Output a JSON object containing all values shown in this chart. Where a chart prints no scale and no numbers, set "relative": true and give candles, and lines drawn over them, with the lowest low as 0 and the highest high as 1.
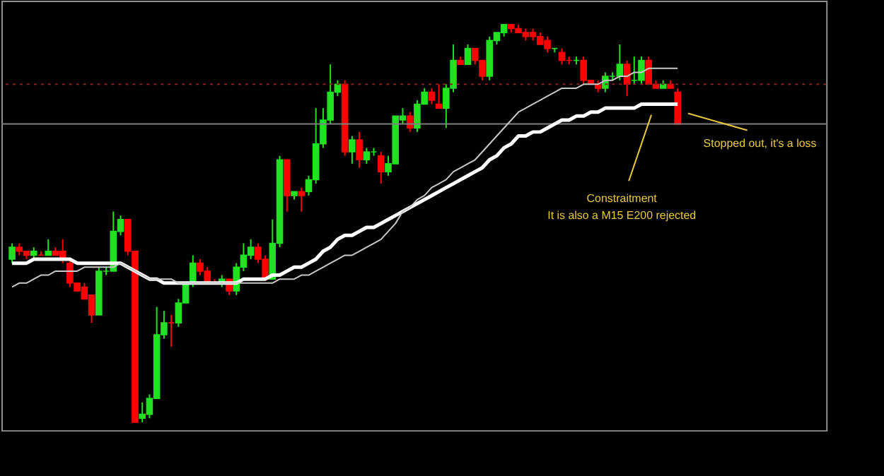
{
  "chart_data": {
    "type": "candlestick",
    "relative": true,
    "tick_labels": false,
    "categories": [
      null,
      null,
      null,
      null,
      null,
      null,
      null,
      null,
      null,
      null,
      null,
      null,
      null,
      null,
      null,
      null,
      null,
      null,
      null,
      null,
      null,
      null,
      null,
      null,
      null,
      null,
      null,
      null,
      null,
      null,
      null,
      null,
      null,
      null,
      null,
      null,
      null,
      null,
      null,
      null,
      null,
      null,
      null,
      null,
      null,
      null,
      null,
      null,
      null,
      null,
      null,
      null,
      null,
      null,
      null,
      null,
      null,
      null,
      null,
      null,
      null,
      null,
      null,
      null,
      null,
      null,
      null,
      null,
      null,
      null,
      null,
      null,
      null,
      null,
      null,
      null,
      null,
      null,
      null,
      null,
      null,
      null,
      null,
      null,
      null,
      null,
      null,
      null,
      null,
      null,
      null,
      null,
      null
    ],
    "ohlc": [
      [
        0.41,
        0.45,
        0.4,
        0.44
      ],
      [
        0.44,
        0.45,
        0.42,
        0.43
      ],
      [
        0.43,
        0.43,
        0.41,
        0.42
      ],
      [
        0.42,
        0.44,
        0.41,
        0.43
      ],
      [
        0.42,
        0.43,
        0.42,
        0.42
      ],
      [
        0.42,
        0.46,
        0.42,
        0.43
      ],
      [
        0.43,
        0.44,
        0.42,
        0.42
      ],
      [
        0.43,
        0.46,
        0.4,
        0.41
      ],
      [
        0.4,
        0.41,
        0.34,
        0.35
      ],
      [
        0.35,
        0.35,
        0.33,
        0.33
      ],
      [
        0.34,
        0.35,
        0.31,
        0.31
      ],
      [
        0.32,
        0.32,
        0.25,
        0.27
      ],
      [
        0.27,
        0.39,
        0.27,
        0.38
      ],
      [
        0.38,
        0.39,
        0.37,
        0.38
      ],
      [
        0.38,
        0.53,
        0.38,
        0.48
      ],
      [
        0.48,
        0.52,
        0.47,
        0.51
      ],
      [
        0.51,
        0.51,
        0.42,
        0.43
      ],
      [
        0.43,
        0.43,
        0.0,
        0.0
      ],
      [
        0.01,
        0.05,
        0.0,
        0.02
      ],
      [
        0.02,
        0.07,
        0.01,
        0.06
      ],
      [
        0.06,
        0.29,
        0.06,
        0.22
      ],
      [
        0.22,
        0.28,
        0.21,
        0.25
      ],
      [
        0.25,
        0.27,
        0.19,
        0.25
      ],
      [
        0.25,
        0.31,
        0.24,
        0.3
      ],
      [
        0.3,
        0.35,
        0.3,
        0.35
      ],
      [
        0.35,
        0.42,
        0.34,
        0.4
      ],
      [
        0.4,
        0.41,
        0.37,
        0.38
      ],
      [
        0.38,
        0.39,
        0.35,
        0.35
      ],
      [
        0.35,
        0.36,
        0.35,
        0.35
      ],
      [
        0.35,
        0.37,
        0.34,
        0.36
      ],
      [
        0.36,
        0.36,
        0.32,
        0.33
      ],
      [
        0.33,
        0.4,
        0.32,
        0.39
      ],
      [
        0.39,
        0.45,
        0.38,
        0.42
      ],
      [
        0.42,
        0.46,
        0.41,
        0.44
      ],
      [
        0.44,
        0.45,
        0.4,
        0.41
      ],
      [
        0.41,
        0.42,
        0.36,
        0.36
      ],
      [
        0.36,
        0.51,
        0.36,
        0.45
      ],
      [
        0.45,
        0.67,
        0.44,
        0.66
      ],
      [
        0.66,
        0.66,
        0.53,
        0.57
      ],
      [
        0.57,
        0.58,
        0.56,
        0.58
      ],
      [
        0.58,
        0.59,
        0.53,
        0.57
      ],
      [
        0.58,
        0.62,
        0.57,
        0.61
      ],
      [
        0.61,
        0.79,
        0.6,
        0.7
      ],
      [
        0.7,
        0.79,
        0.69,
        0.76
      ],
      [
        0.76,
        0.9,
        0.75,
        0.83
      ],
      [
        0.83,
        0.86,
        0.82,
        0.85
      ],
      [
        0.85,
        0.86,
        0.67,
        0.68
      ],
      [
        0.68,
        0.72,
        0.65,
        0.71
      ],
      [
        0.71,
        0.73,
        0.64,
        0.66
      ],
      [
        0.66,
        0.69,
        0.65,
        0.68
      ],
      [
        0.68,
        0.69,
        0.67,
        0.68
      ],
      [
        0.67,
        0.68,
        0.6,
        0.63
      ],
      [
        0.63,
        0.67,
        0.62,
        0.65
      ],
      [
        0.65,
        0.77,
        0.65,
        0.77
      ],
      [
        0.76,
        0.79,
        0.75,
        0.77
      ],
      [
        0.77,
        0.78,
        0.73,
        0.74
      ],
      [
        0.74,
        0.81,
        0.73,
        0.8
      ],
      [
        0.8,
        0.84,
        0.8,
        0.83
      ],
      [
        0.83,
        0.84,
        0.8,
        0.81
      ],
      [
        0.8,
        0.85,
        0.79,
        0.79
      ],
      [
        0.79,
        0.85,
        0.74,
        0.84
      ],
      [
        0.84,
        0.95,
        0.83,
        0.91
      ],
      [
        0.91,
        0.92,
        0.9,
        0.9
      ],
      [
        0.9,
        0.95,
        0.9,
        0.94
      ],
      [
        0.94,
        0.94,
        0.9,
        0.91
      ],
      [
        0.91,
        0.91,
        0.86,
        0.87
      ],
      [
        0.87,
        0.97,
        0.86,
        0.96
      ],
      [
        0.96,
        0.98,
        0.95,
        0.98
      ],
      [
        0.98,
        1.0,
        0.97,
        1.0
      ],
      [
        1.0,
        1.0,
        0.98,
        0.99
      ],
      [
        0.99,
        1.0,
        0.98,
        0.98
      ],
      [
        0.98,
        0.99,
        0.96,
        0.97
      ],
      [
        0.98,
        0.99,
        0.96,
        0.97
      ],
      [
        0.97,
        0.98,
        0.95,
        0.95
      ],
      [
        0.96,
        0.97,
        0.93,
        0.94
      ],
      [
        0.94,
        0.94,
        0.93,
        0.94
      ],
      [
        0.93,
        0.94,
        0.9,
        0.91
      ],
      [
        0.91,
        0.92,
        0.9,
        0.91
      ],
      [
        0.91,
        0.92,
        0.9,
        0.91
      ],
      [
        0.91,
        0.92,
        0.85,
        0.86
      ],
      [
        0.86,
        0.86,
        0.85,
        0.85
      ],
      [
        0.85,
        0.86,
        0.83,
        0.84
      ],
      [
        0.84,
        0.88,
        0.83,
        0.87
      ],
      [
        0.87,
        0.88,
        0.86,
        0.87
      ],
      [
        0.87,
        0.95,
        0.86,
        0.9
      ],
      [
        0.9,
        0.91,
        0.82,
        0.85
      ],
      [
        0.86,
        0.92,
        0.85,
        0.86
      ],
      [
        0.86,
        0.92,
        0.85,
        0.91
      ],
      [
        0.91,
        0.92,
        0.85,
        0.85
      ],
      [
        0.85,
        0.86,
        0.84,
        0.84
      ],
      [
        0.84,
        0.86,
        0.84,
        0.85
      ],
      [
        0.85,
        0.86,
        0.84,
        0.84
      ],
      [
        0.83,
        0.84,
        0.75,
        0.75
      ]
    ],
    "colors": [
      "#22e022",
      "#ff0000",
      "#ff0000",
      "#22e022",
      "#ff0000",
      "#22e022",
      "#ff0000",
      "#ff0000",
      "#ff0000",
      "#ff0000",
      "#ff0000",
      "#ff0000",
      "#22e022",
      "#22e022",
      "#22e022",
      "#22e022",
      "#ff0000",
      "#ff0000",
      "#22e022",
      "#22e022",
      "#22e022",
      "#22e022",
      "#ff0000",
      "#22e022",
      "#22e022",
      "#22e022",
      "#ff0000",
      "#ff0000",
      "#ff0000",
      "#22e022",
      "#ff0000",
      "#22e022",
      "#22e022",
      "#22e022",
      "#ff0000",
      "#ff0000",
      "#22e022",
      "#22e022",
      "#ff0000",
      "#22e022",
      "#ff0000",
      "#22e022",
      "#22e022",
      "#22e022",
      "#22e022",
      "#22e022",
      "#ff0000",
      "#22e022",
      "#ff0000",
      "#22e022",
      "#22e022",
      "#ff0000",
      "#22e022",
      "#22e022",
      "#22e022",
      "#ff0000",
      "#22e022",
      "#22e022",
      "#ff0000",
      "#ff0000",
      "#22e022",
      "#22e022",
      "#ff0000",
      "#22e022",
      "#ff0000",
      "#ff0000",
      "#22e022",
      "#22e022",
      "#22e022",
      "#ff0000",
      "#ff0000",
      "#ff0000",
      "#ff0000",
      "#ff0000",
      "#ff0000",
      "#22e022",
      "#ff0000",
      "#ff0000",
      "#22e022",
      "#ff0000",
      "#ff0000",
      "#ff0000",
      "#22e022",
      "#22e022",
      "#22e022",
      "#ff0000",
      "#22e022",
      "#22e022",
      "#ff0000",
      "#ff0000",
      "#22e022",
      "#ff0000",
      "#ff0000"
    ],
    "series": [
      {
        "type": "line",
        "color": "#ffffff",
        "values": [
          0.4,
          0.4,
          0.4,
          0.41,
          0.41,
          0.41,
          0.41,
          0.41,
          0.41,
          0.4,
          0.4,
          0.4,
          0.4,
          0.4,
          0.4,
          0.4,
          0.39,
          0.38,
          0.37,
          0.36,
          0.36,
          0.35,
          0.35,
          0.35,
          0.35,
          0.35,
          0.35,
          0.35,
          0.35,
          0.35,
          0.35,
          0.35,
          0.36,
          0.36,
          0.36,
          0.36,
          0.37,
          0.37,
          0.38,
          0.39,
          0.39,
          0.4,
          0.41,
          0.43,
          0.44,
          0.46,
          0.47,
          0.47,
          0.48,
          0.49,
          0.49,
          0.5,
          0.51,
          0.52,
          0.53,
          0.54,
          0.55,
          0.56,
          0.57,
          0.58,
          0.59,
          0.6,
          0.61,
          0.62,
          0.63,
          0.64,
          0.66,
          0.67,
          0.69,
          0.7,
          0.72,
          0.72,
          0.73,
          0.73,
          0.74,
          0.75,
          0.76,
          0.76,
          0.77,
          0.77,
          0.78,
          0.78,
          0.79,
          0.79,
          0.79,
          0.79,
          0.79,
          0.8,
          0.8,
          0.8,
          0.8,
          0.8,
          0.8
        ]
      },
      {
        "type": "line",
        "color": "#c8c8c8",
        "values": [
          0.34,
          0.35,
          0.35,
          0.36,
          0.37,
          0.37,
          0.38,
          0.38,
          0.38,
          0.38,
          0.39,
          0.39,
          0.39,
          0.39,
          0.39,
          0.4,
          0.39,
          0.38,
          0.37,
          0.36,
          0.36,
          0.36,
          0.36,
          0.35,
          0.35,
          0.35,
          0.35,
          0.35,
          0.35,
          0.35,
          0.35,
          0.35,
          0.35,
          0.35,
          0.35,
          0.35,
          0.35,
          0.36,
          0.36,
          0.36,
          0.37,
          0.37,
          0.38,
          0.39,
          0.4,
          0.41,
          0.42,
          0.42,
          0.43,
          0.44,
          0.45,
          0.46,
          0.48,
          0.5,
          0.53,
          0.54,
          0.56,
          0.57,
          0.59,
          0.6,
          0.61,
          0.63,
          0.64,
          0.65,
          0.66,
          0.68,
          0.7,
          0.72,
          0.74,
          0.76,
          0.78,
          0.79,
          0.8,
          0.81,
          0.82,
          0.83,
          0.84,
          0.84,
          0.84,
          0.85,
          0.85,
          0.85,
          0.86,
          0.86,
          0.87,
          0.87,
          0.88,
          0.88,
          0.89,
          0.89,
          0.89,
          0.89,
          0.89
        ]
      }
    ],
    "ref_lines": [
      {
        "axis": "y",
        "value": 0.85,
        "color": "#8b2020",
        "line_style": "dotted"
      },
      {
        "axis": "y",
        "value": 0.75,
        "color": "#808080",
        "line_style": "solid"
      }
    ],
    "annotations": [
      "Constraitment",
      "It is also a M15 E200 rejected",
      "Stopped out, it's a loss"
    ]
  }
}
